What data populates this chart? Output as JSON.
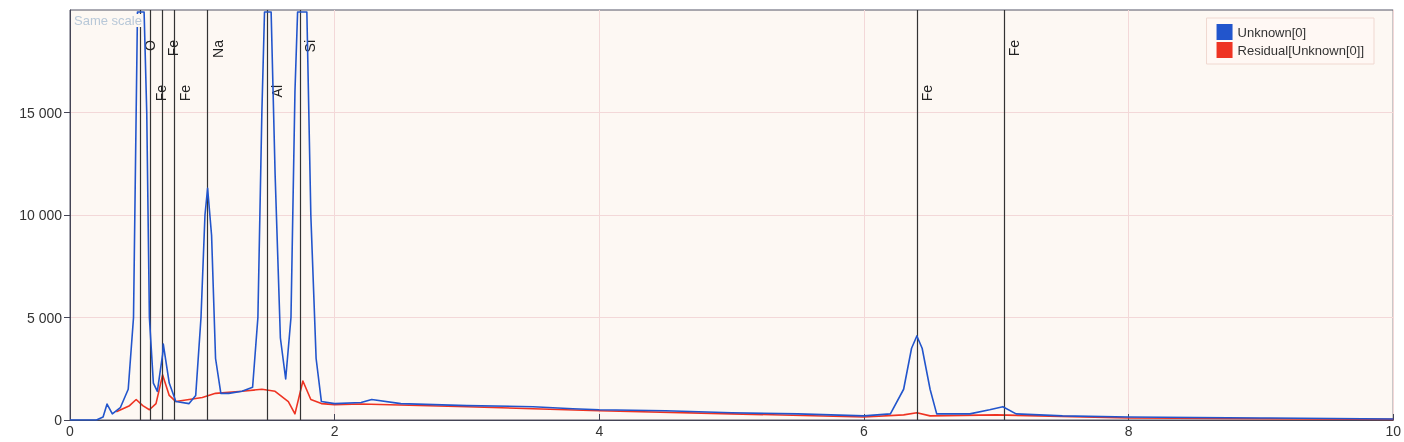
{
  "chart_data": {
    "type": "line",
    "x": [
      0,
      0.2,
      0.25,
      0.28,
      0.32,
      0.38,
      0.44,
      0.48,
      0.5,
      0.51,
      0.56,
      0.58,
      0.6,
      0.63,
      0.66,
      0.7,
      0.705,
      0.75,
      0.8,
      0.9,
      0.95,
      0.99,
      1.02,
      1.04,
      1.07,
      1.1,
      1.14,
      1.2,
      1.3,
      1.38,
      1.42,
      1.45,
      1.47,
      1.52,
      1.55,
      1.59,
      1.63,
      1.67,
      1.7,
      1.72,
      1.79,
      1.82,
      1.86,
      1.9,
      2.0,
      2.2,
      2.28,
      2.5,
      3.0,
      3.5,
      3.8,
      4.0,
      4.5,
      5.0,
      5.5,
      6.0,
      6.2,
      6.3,
      6.36,
      6.4,
      6.44,
      6.5,
      6.55,
      6.8,
      6.95,
      7.05,
      7.15,
      7.5,
      8,
      9,
      10
    ],
    "series": [
      {
        "name": "Unknown[0]",
        "color": "#2255cc",
        "values": [
          0,
          0,
          150,
          780,
          300,
          600,
          1500,
          5000,
          15000,
          19900,
          19900,
          15000,
          5000,
          1800,
          1400,
          3200,
          3700,
          1800,
          900,
          800,
          1200,
          5000,
          10000,
          11300,
          9000,
          3000,
          1300,
          1300,
          1400,
          1600,
          5000,
          15000,
          19900,
          19900,
          12000,
          4000,
          2000,
          5000,
          16000,
          19900,
          19900,
          10000,
          3000,
          900,
          800,
          850,
          1000,
          800,
          700,
          650,
          550,
          500,
          450,
          350,
          300,
          200,
          300,
          1500,
          3500,
          4100,
          3500,
          1500,
          300,
          300,
          500,
          650,
          300,
          200,
          150,
          100,
          50
        ]
      },
      {
        "name": "Residual[Unknown[0]]",
        "color": "#ee3322",
        "x": [
          0.35,
          0.45,
          0.5,
          0.55,
          0.6,
          0.65,
          0.7,
          0.75,
          0.8,
          0.9,
          1.0,
          1.1,
          1.3,
          1.45,
          1.55,
          1.65,
          1.7,
          1.76,
          1.82,
          1.9,
          2.0,
          2.2,
          3.0,
          4.0,
          5.0,
          6.0,
          6.3,
          6.4,
          6.5,
          7.0,
          8.0,
          10
        ],
        "values": [
          400,
          700,
          1000,
          700,
          500,
          800,
          2200,
          1200,
          900,
          1000,
          1100,
          1300,
          1400,
          1500,
          1400,
          900,
          300,
          1900,
          1000,
          800,
          750,
          780,
          650,
          450,
          300,
          150,
          250,
          350,
          200,
          250,
          100,
          30
        ]
      }
    ],
    "xlim": [
      0,
      10
    ],
    "xticks": [
      0,
      2,
      4,
      6,
      8,
      10
    ],
    "ylim": [
      0,
      20000
    ],
    "yticks": [
      {
        "value": 0,
        "label": "0"
      },
      {
        "value": 5000,
        "label": "5 000"
      },
      {
        "value": 10000,
        "label": "10 000"
      },
      {
        "value": 15000,
        "label": "15 000"
      }
    ],
    "grid": true,
    "legend": "top right",
    "marker": "none",
    "ref_lines": [
      {
        "axis": "x",
        "value": 0.525,
        "label": "O"
      },
      {
        "axis": "x",
        "value": 0.615,
        "label": "Fe"
      },
      {
        "axis": "x",
        "value": 0.705,
        "label": "Fe"
      },
      {
        "axis": "x",
        "value": 0.79,
        "label": "Fe"
      },
      {
        "axis": "x",
        "value": 1.041,
        "label": "Na"
      },
      {
        "axis": "x",
        "value": 1.487,
        "label": "Al"
      },
      {
        "axis": "x",
        "value": 1.74,
        "label": "Si"
      },
      {
        "axis": "x",
        "value": 6.4,
        "label": "Fe"
      },
      {
        "axis": "x",
        "value": 7.06,
        "label": "Fe"
      }
    ],
    "annotations": [
      "Same scale"
    ]
  }
}
